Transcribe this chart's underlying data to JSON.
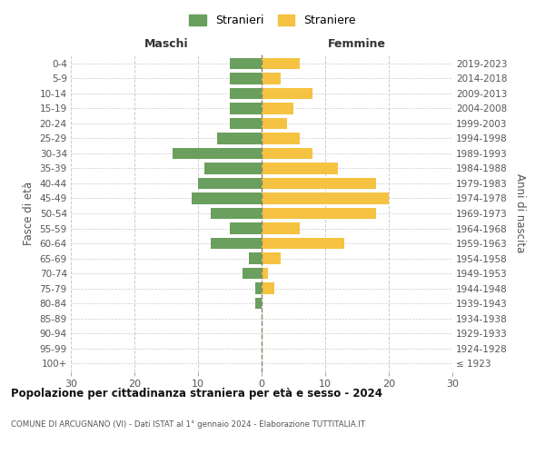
{
  "age_groups": [
    "100+",
    "95-99",
    "90-94",
    "85-89",
    "80-84",
    "75-79",
    "70-74",
    "65-69",
    "60-64",
    "55-59",
    "50-54",
    "45-49",
    "40-44",
    "35-39",
    "30-34",
    "25-29",
    "20-24",
    "15-19",
    "10-14",
    "5-9",
    "0-4"
  ],
  "birth_years": [
    "≤ 1923",
    "1924-1928",
    "1929-1933",
    "1934-1938",
    "1939-1943",
    "1944-1948",
    "1949-1953",
    "1954-1958",
    "1959-1963",
    "1964-1968",
    "1969-1973",
    "1974-1978",
    "1979-1983",
    "1984-1988",
    "1989-1993",
    "1994-1998",
    "1999-2003",
    "2004-2008",
    "2009-2013",
    "2014-2018",
    "2019-2023"
  ],
  "males": [
    0,
    0,
    0,
    0,
    1,
    1,
    3,
    2,
    8,
    5,
    8,
    11,
    10,
    9,
    14,
    7,
    5,
    5,
    5,
    5,
    5
  ],
  "females": [
    0,
    0,
    0,
    0,
    0,
    2,
    1,
    3,
    13,
    6,
    18,
    20,
    18,
    12,
    8,
    6,
    4,
    5,
    8,
    3,
    6
  ],
  "male_color": "#6a9f5e",
  "female_color": "#f5c242",
  "background_color": "#ffffff",
  "grid_color": "#cccccc",
  "title": "Popolazione per cittadinanza straniera per età e sesso - 2024",
  "subtitle": "COMUNE DI ARCUGNANO (VI) - Dati ISTAT al 1° gennaio 2024 - Elaborazione TUTTITALIA.IT",
  "left_header": "Maschi",
  "right_header": "Femmine",
  "left_axis_label": "Fasce di età",
  "right_axis_label": "Anni di nascita",
  "legend_males": "Stranieri",
  "legend_females": "Straniere",
  "xlim": 30,
  "bar_height": 0.75
}
